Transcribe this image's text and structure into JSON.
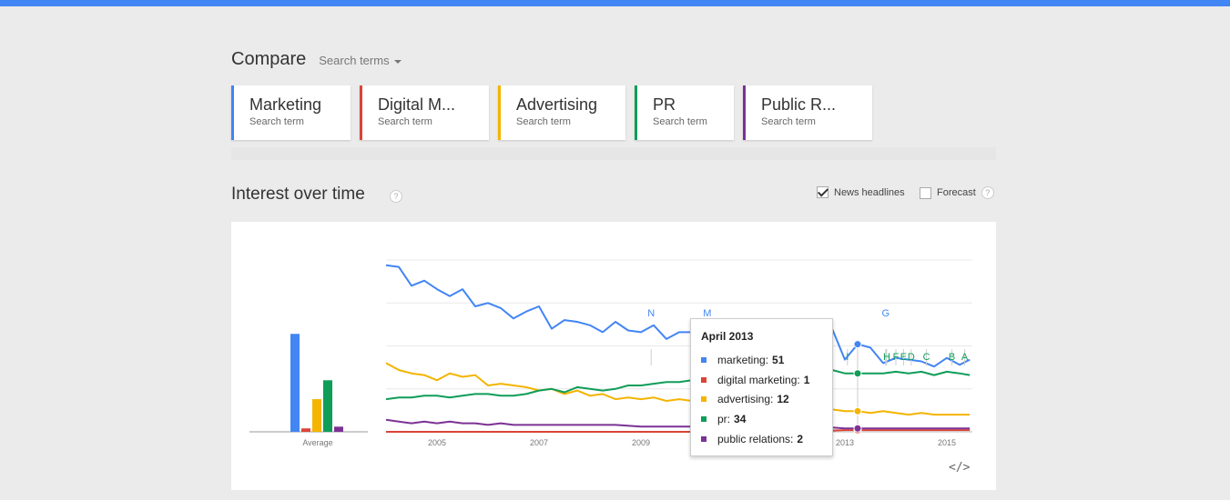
{
  "compare": {
    "title": "Compare",
    "dropdown_label": "Search terms"
  },
  "terms": [
    {
      "name": "Marketing",
      "subtitle": "Search term",
      "color": "#4285f4"
    },
    {
      "name": "Digital M...",
      "subtitle": "Search term",
      "color": "#db4437"
    },
    {
      "name": "Advertising",
      "subtitle": "Search term",
      "color": "#f4b400"
    },
    {
      "name": "PR",
      "subtitle": "Search term",
      "color": "#0f9d58"
    },
    {
      "name": "Public R...",
      "subtitle": "Search term",
      "color": "#7b3294"
    }
  ],
  "section": {
    "title": "Interest over time",
    "help": "?",
    "news_headlines_label": "News headlines",
    "news_headlines_checked": true,
    "forecast_label": "Forecast",
    "forecast_checked": false
  },
  "chart_data": {
    "type": "line",
    "average_label": "Average",
    "averages": [
      {
        "name": "marketing",
        "value": 57
      },
      {
        "name": "digital marketing",
        "value": 2
      },
      {
        "name": "advertising",
        "value": 19
      },
      {
        "name": "pr",
        "value": 30
      },
      {
        "name": "public relations",
        "value": 3
      }
    ],
    "x_ticks": [
      "2005",
      "2007",
      "2009",
      "2011",
      "2013",
      "2015"
    ],
    "x_range": [
      2004.0,
      2015.5
    ],
    "y_range": [
      0,
      100
    ],
    "series": [
      {
        "name": "marketing",
        "color": "#4285f4",
        "x": [
          2004.0,
          2004.25,
          2004.5,
          2004.75,
          2005.0,
          2005.25,
          2005.5,
          2005.75,
          2006.0,
          2006.25,
          2006.5,
          2006.75,
          2007.0,
          2007.25,
          2007.5,
          2007.75,
          2008.0,
          2008.25,
          2008.5,
          2008.75,
          2009.0,
          2009.25,
          2009.5,
          2009.75,
          2010.0,
          2010.25,
          2010.5,
          2010.75,
          2011.0,
          2011.25,
          2011.5,
          2011.75,
          2012.0,
          2012.25,
          2012.5,
          2012.75,
          2013.0,
          2013.25,
          2013.5,
          2013.75,
          2014.0,
          2014.25,
          2014.5,
          2014.75,
          2015.0,
          2015.25,
          2015.45
        ],
        "y": [
          97,
          96,
          85,
          88,
          83,
          79,
          83,
          73,
          75,
          72,
          66,
          70,
          73,
          60,
          65,
          64,
          62,
          58,
          64,
          59,
          58,
          62,
          54,
          58,
          58,
          55,
          52,
          57,
          52,
          56,
          49,
          52,
          50,
          55,
          46,
          60,
          42,
          51,
          49,
          40,
          43,
          42,
          41,
          38,
          43,
          39,
          42
        ]
      },
      {
        "name": "digital marketing",
        "color": "#db4437",
        "x": [
          2004.0,
          2006.0,
          2008.0,
          2010.0,
          2011.0,
          2012.0,
          2013.0,
          2013.25,
          2014.0,
          2015.0,
          2015.45
        ],
        "y": [
          0,
          0,
          0,
          0,
          0,
          0,
          1,
          1,
          1,
          1,
          1
        ]
      },
      {
        "name": "advertising",
        "color": "#f4b400",
        "x": [
          2004.0,
          2004.25,
          2004.5,
          2004.75,
          2005.0,
          2005.25,
          2005.5,
          2005.75,
          2006.0,
          2006.25,
          2006.5,
          2006.75,
          2007.0,
          2007.25,
          2007.5,
          2007.75,
          2008.0,
          2008.25,
          2008.5,
          2008.75,
          2009.0,
          2009.25,
          2009.5,
          2009.75,
          2010.0,
          2010.25,
          2010.5,
          2010.75,
          2011.0,
          2011.25,
          2011.5,
          2011.75,
          2012.0,
          2012.25,
          2012.5,
          2012.75,
          2013.0,
          2013.25,
          2013.5,
          2013.75,
          2014.0,
          2014.25,
          2014.5,
          2014.75,
          2015.0,
          2015.25,
          2015.45
        ],
        "y": [
          40,
          36,
          34,
          33,
          30,
          34,
          32,
          33,
          27,
          28,
          27,
          26,
          24,
          25,
          22,
          24,
          21,
          22,
          19,
          20,
          19,
          20,
          18,
          19,
          18,
          16,
          15,
          17,
          16,
          15,
          15,
          14,
          15,
          13,
          14,
          13,
          12,
          12,
          11,
          12,
          11,
          10,
          11,
          10,
          10,
          10,
          10
        ]
      },
      {
        "name": "pr",
        "color": "#0f9d58",
        "x": [
          2004.0,
          2004.25,
          2004.5,
          2004.75,
          2005.0,
          2005.25,
          2005.5,
          2005.75,
          2006.0,
          2006.25,
          2006.5,
          2006.75,
          2007.0,
          2007.25,
          2007.5,
          2007.75,
          2008.0,
          2008.25,
          2008.5,
          2008.75,
          2009.0,
          2009.25,
          2009.5,
          2009.75,
          2010.0,
          2010.25,
          2010.5,
          2010.75,
          2011.0,
          2011.25,
          2011.5,
          2011.75,
          2012.0,
          2012.25,
          2012.5,
          2012.75,
          2013.0,
          2013.25,
          2013.5,
          2013.75,
          2014.0,
          2014.25,
          2014.5,
          2014.75,
          2015.0,
          2015.25,
          2015.45
        ],
        "y": [
          19,
          20,
          20,
          21,
          21,
          20,
          21,
          22,
          22,
          21,
          21,
          22,
          24,
          25,
          23,
          26,
          25,
          24,
          25,
          27,
          27,
          28,
          29,
          29,
          30,
          32,
          31,
          34,
          33,
          32,
          33,
          34,
          33,
          35,
          33,
          36,
          34,
          34,
          34,
          34,
          35,
          34,
          35,
          33,
          35,
          34,
          33
        ]
      },
      {
        "name": "public relations",
        "color": "#7b3294",
        "x": [
          2004.0,
          2004.25,
          2004.5,
          2004.75,
          2005.0,
          2005.25,
          2005.5,
          2005.75,
          2006.0,
          2006.25,
          2006.5,
          2006.75,
          2007.0,
          2007.5,
          2008.0,
          2008.5,
          2009.0,
          2009.5,
          2010.0,
          2010.5,
          2011.0,
          2011.5,
          2012.0,
          2012.5,
          2013.0,
          2013.25,
          2013.5,
          2014.0,
          2014.5,
          2015.0,
          2015.45
        ],
        "y": [
          7,
          6,
          5,
          6,
          5,
          6,
          5,
          5,
          4,
          5,
          4,
          4,
          4,
          4,
          4,
          4,
          3,
          3,
          3,
          3,
          3,
          3,
          3,
          3,
          2,
          2,
          2,
          2,
          2,
          2,
          2
        ]
      }
    ],
    "annotations": [
      {
        "label": "N",
        "x": 2009.2,
        "color": "#4285f4"
      },
      {
        "label": "M",
        "x": 2010.3,
        "color": "#4285f4"
      },
      {
        "label": "G",
        "x": 2013.8,
        "color": "#4285f4"
      },
      {
        "label": "H",
        "x": 2013.82,
        "color": "#0f9d58"
      },
      {
        "label": "F",
        "x": 2014.0,
        "color": "#0f9d58"
      },
      {
        "label": "E",
        "x": 2014.15,
        "color": "#0f9d58"
      },
      {
        "label": "D",
        "x": 2014.3,
        "color": "#0f9d58"
      },
      {
        "label": "C",
        "x": 2014.6,
        "color": "#0f9d58"
      },
      {
        "label": "B",
        "x": 2015.1,
        "color": "#0f9d58"
      },
      {
        "label": "A",
        "x": 2015.35,
        "color": "#0f9d58"
      },
      {
        "label": "I",
        "x": 2013.05,
        "color": "#0f9d58"
      }
    ],
    "highlight_x": 2013.25
  },
  "tooltip": {
    "title": "April 2013",
    "rows": [
      {
        "label": "marketing:",
        "value": "51",
        "color": "#4285f4"
      },
      {
        "label": "digital marketing:",
        "value": "1",
        "color": "#db4437"
      },
      {
        "label": "advertising:",
        "value": "12",
        "color": "#f4b400"
      },
      {
        "label": "pr:",
        "value": "34",
        "color": "#0f9d58"
      },
      {
        "label": "public relations:",
        "value": "2",
        "color": "#7b3294"
      }
    ]
  },
  "embed_label": "</>"
}
